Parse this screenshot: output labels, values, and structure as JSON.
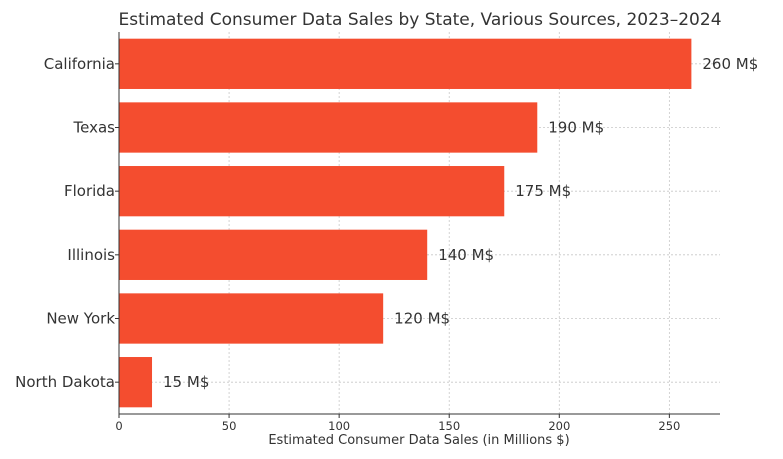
{
  "chart_data": {
    "type": "bar",
    "orientation": "horizontal",
    "title": "Estimated Consumer Data Sales by State, Various Sources, 2023–2024",
    "xlabel": "Estimated Consumer Data Sales (in Millions $)",
    "ylabel": "",
    "categories": [
      "California",
      "Texas",
      "Florida",
      "Illinois",
      "New York",
      "North Dakota"
    ],
    "values": [
      260,
      190,
      175,
      140,
      120,
      15
    ],
    "data_labels": [
      "260 M$",
      "190 M$",
      "175 M$",
      "140 M$",
      "120 M$",
      "15 M$"
    ],
    "xlim": [
      0,
      273
    ],
    "xticks": [
      0,
      50,
      100,
      150,
      200,
      250
    ],
    "xtick_labels": [
      "0",
      "50",
      "100",
      "150",
      "200",
      "250"
    ],
    "grid": true,
    "bar_color": "#f44d2f"
  }
}
